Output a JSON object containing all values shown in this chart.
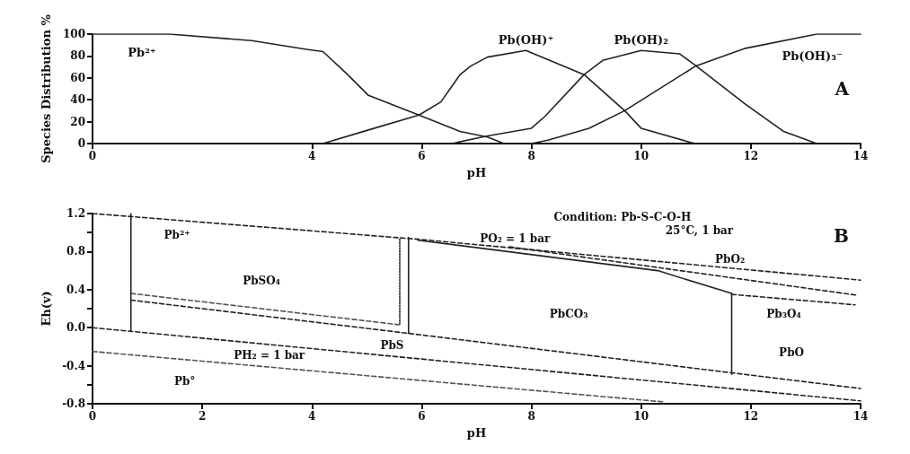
{
  "chart_data": [
    {
      "type": "line",
      "title": "A",
      "xlabel": "pH",
      "ylabel": "Species Distribution %",
      "xlim": [
        0,
        14
      ],
      "ylim": [
        0,
        100
      ],
      "xticks": [
        0,
        4,
        6,
        8,
        10,
        12,
        14
      ],
      "yticks": [
        0,
        20,
        40,
        60,
        80,
        100
      ],
      "grid": false,
      "marker": "none",
      "series": [
        {
          "name": "Pb²⁺",
          "color": "#222222",
          "x": [
            0,
            1.4,
            2.9,
            3.9,
            4.2,
            4.65,
            5.03,
            5.95,
            6.7,
            7.2,
            7.5
          ],
          "values": [
            100,
            100,
            94,
            86,
            84,
            63,
            44,
            26,
            11,
            6,
            0
          ]
        },
        {
          "name": "Pb(OH)⁺",
          "color": "#222222",
          "x": [
            4.2,
            5,
            5.95,
            6.35,
            6.7,
            6.9,
            7.2,
            7.9,
            8.96,
            9.7,
            10,
            10.9,
            11
          ],
          "values": [
            0,
            12,
            26,
            38,
            63,
            71,
            79,
            85,
            63,
            30,
            14,
            1,
            0
          ]
        },
        {
          "name": "Pb(OH)₂",
          "color": "#222222",
          "x": [
            6.55,
            7.2,
            8,
            8.25,
            8.96,
            9.3,
            10,
            10.7,
            11,
            11.9,
            12.6,
            13.2
          ],
          "values": [
            0,
            7,
            14,
            25,
            63,
            76,
            85,
            82,
            71,
            36,
            11,
            0
          ]
        },
        {
          "name": "Pb(OH)₃⁻",
          "color": "#222222",
          "x": [
            8,
            8.3,
            9.05,
            9.7,
            11,
            11.9,
            13.2,
            14
          ],
          "values": [
            0,
            3,
            14,
            30,
            71,
            87,
            100,
            100
          ]
        }
      ]
    },
    {
      "type": "line",
      "title": "B",
      "xlabel": "pH",
      "ylabel": "Eh(v)",
      "xlim": [
        0,
        14
      ],
      "ylim": [
        -0.8,
        1.2
      ],
      "xticks": [
        0,
        2,
        4,
        6,
        8,
        10,
        12,
        14
      ],
      "yticks": [
        {
          "value": -0.8,
          "label": "-0.8"
        },
        {
          "value": -0.6,
          "label": null
        },
        {
          "value": -0.4,
          "label": "-0.4"
        },
        {
          "value": 0,
          "label": "0.0"
        },
        {
          "value": 0.2,
          "label": null
        },
        {
          "value": 0.4,
          "label": "0.4"
        },
        {
          "value": 0.8,
          "label": "0.8"
        },
        {
          "value": 1,
          "label": null
        },
        {
          "value": 1.2,
          "label": "1.2"
        }
      ],
      "grid": false,
      "marker": "none",
      "series": [
        {
          "color": "#222222",
          "line_style": "dashed",
          "x": [
            0,
            5.93,
            14
          ],
          "values": [
            1.2,
            0.93,
            0.5
          ]
        },
        {
          "color": "#222222",
          "line_style": "dashed",
          "x": [
            0,
            14
          ],
          "values": [
            0,
            -0.77
          ]
        },
        {
          "color": "#222222",
          "line_style": "dashed",
          "x": [
            0.7,
            5.76,
            14
          ],
          "values": [
            0.29,
            -0.06,
            -0.64
          ]
        },
        {
          "color": "#555555",
          "line_style": "dashed",
          "x": [
            0.7,
            5.6
          ],
          "values": [
            0.36,
            0.03
          ]
        },
        {
          "color": "#555555",
          "line_style": "dashed",
          "x": [
            0,
            10.4
          ],
          "values": [
            -0.25,
            -0.78
          ]
        },
        {
          "color": "#222222",
          "line_style": "solid",
          "x": [
            0.7,
            0.7
          ],
          "values": [
            1.2,
            -0.03
          ]
        },
        {
          "color": "#222222",
          "line_style": "solid",
          "x": [
            5.76,
            5.76
          ],
          "values": [
            0.95,
            -0.06
          ]
        },
        {
          "color": "#222222",
          "line_style": "dotted",
          "x": [
            5.6,
            5.6
          ],
          "values": [
            0.93,
            0.03
          ]
        },
        {
          "color": "#222222",
          "line_style": "dashed",
          "x": [
            7.6,
            13.95
          ],
          "values": [
            0.85,
            0.34
          ]
        },
        {
          "color": "#222222",
          "line_style": "dashed",
          "x": [
            11.65,
            13.9
          ],
          "values": [
            0.35,
            0.24
          ]
        },
        {
          "color": "#222222",
          "line_style": "solid",
          "x": [
            5.93,
            10.3,
            11.65
          ],
          "values": [
            0.92,
            0.6,
            0.36
          ]
        },
        {
          "color": "#222222",
          "line_style": "solid",
          "x": [
            11.65,
            11.65
          ],
          "values": [
            0.36,
            -0.49
          ]
        }
      ],
      "annotations": [
        "Condition: Pb-S-C-O-H",
        "25°C, 1 bar",
        "Pb²⁺",
        "PbSO₄",
        "PO₂ = 1 bar",
        "PbO₂",
        "PbCO₃",
        "Pb₃O₄",
        "PbO",
        "PbS",
        "PH₂ = 1 bar",
        "Pb°"
      ]
    }
  ]
}
